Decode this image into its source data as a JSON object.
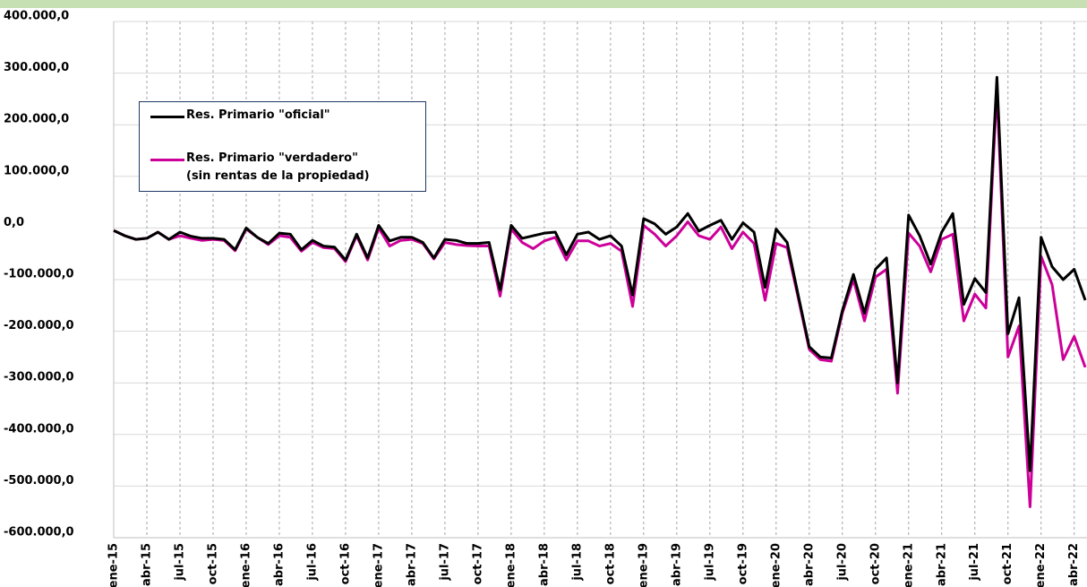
{
  "chart_data": {
    "type": "line",
    "categories": [
      "ene-15",
      null,
      null,
      "abr-15",
      null,
      null,
      "jul-15",
      null,
      null,
      "oct-15",
      null,
      null,
      "ene-16",
      null,
      null,
      "abr-16",
      null,
      null,
      "jul-16",
      null,
      null,
      "oct-16",
      null,
      null,
      "ene-17",
      null,
      null,
      "abr-17",
      null,
      null,
      "jul-17",
      null,
      null,
      "oct-17",
      null,
      null,
      "ene-18",
      null,
      null,
      "abr-18",
      null,
      null,
      "jul-18",
      null,
      null,
      "oct-18",
      null,
      null,
      "ene-19",
      null,
      null,
      "abr-19",
      null,
      null,
      "jul-19",
      null,
      null,
      "oct-19",
      null,
      null,
      "ene-20",
      null,
      null,
      "abr-20",
      null,
      null,
      "jul-20",
      null,
      null,
      "oct-20",
      null,
      null,
      "ene-21",
      null,
      null,
      "abr-21",
      null,
      null,
      "jul-21",
      null,
      null,
      "oct-21",
      null,
      null,
      "ene-22",
      null,
      null,
      "abr-22",
      null
    ],
    "series": [
      {
        "name": "Res. Primario \"oficial\"",
        "color": "#000000",
        "values": [
          -5000,
          -15000,
          -22000,
          -20000,
          -8000,
          -22000,
          -8000,
          -16000,
          -20000,
          -20000,
          -22000,
          -42000,
          0,
          -18000,
          -30000,
          -10000,
          -12000,
          -42000,
          -24000,
          -35000,
          -37000,
          -62000,
          -12000,
          -58000,
          5000,
          -25000,
          -18000,
          -18000,
          -28000,
          -58000,
          -22000,
          -24000,
          -30000,
          -30000,
          -28000,
          -120000,
          5000,
          -20000,
          -15000,
          -10000,
          -8000,
          -52000,
          -12000,
          -8000,
          -22000,
          -15000,
          -35000,
          -130000,
          18000,
          8000,
          -12000,
          2000,
          28000,
          -6000,
          5000,
          15000,
          -22000,
          10000,
          -8000,
          -115000,
          -2000,
          -28000,
          -130000,
          -230000,
          -250000,
          -252000,
          -160000,
          -90000,
          -165000,
          -80000,
          -58000,
          -300000,
          25000,
          -15000,
          -70000,
          -8000,
          28000,
          -148000,
          -98000,
          -125000,
          292000,
          -205000,
          -135000,
          -470000,
          -18000,
          -75000,
          -100000,
          -80000,
          -140000
        ]
      },
      {
        "name": "Res. Primario \"verdadero\"\n(sin rentas de la propiedad)",
        "color": "#cc0099",
        "values": [
          -5000,
          -15000,
          -22000,
          -20000,
          -8000,
          -22000,
          -15000,
          -20000,
          -24000,
          -22000,
          -24000,
          -44000,
          -2000,
          -18000,
          -32000,
          -15000,
          -18000,
          -45000,
          -28000,
          -38000,
          -40000,
          -65000,
          -15000,
          -62000,
          0,
          -35000,
          -24000,
          -22000,
          -30000,
          -60000,
          -28000,
          -32000,
          -34000,
          -35000,
          -35000,
          -132000,
          -2000,
          -28000,
          -40000,
          -25000,
          -18000,
          -62000,
          -25000,
          -25000,
          -35000,
          -30000,
          -45000,
          -152000,
          5000,
          -12000,
          -35000,
          -15000,
          12000,
          -15000,
          -22000,
          2000,
          -40000,
          -8000,
          -30000,
          -140000,
          -30000,
          -38000,
          -135000,
          -235000,
          -255000,
          -258000,
          -165000,
          -100000,
          -180000,
          -95000,
          -80000,
          -320000,
          -10000,
          -35000,
          -85000,
          -22000,
          -12000,
          -180000,
          -128000,
          -155000,
          270000,
          -250000,
          -190000,
          -540000,
          -55000,
          -110000,
          -255000,
          -210000,
          -270000
        ]
      }
    ],
    "ylim": [
      -600000,
      400000
    ],
    "yticks": [
      {
        "value": -600000,
        "label": "-600.000,0"
      },
      {
        "value": -500000,
        "label": "-500.000,0"
      },
      {
        "value": -400000,
        "label": "-400.000,0"
      },
      {
        "value": -300000,
        "label": "-300.000,0"
      },
      {
        "value": -200000,
        "label": "-200.000,0"
      },
      {
        "value": -100000,
        "label": "-100.000,0"
      },
      {
        "value": 0,
        "label": "0,0"
      },
      {
        "value": 100000,
        "label": "100.000,0"
      },
      {
        "value": 200000,
        "label": "200.000,0"
      },
      {
        "value": 300000,
        "label": "300.000,0"
      },
      {
        "value": 400000,
        "label": "400.000,0"
      }
    ],
    "grid": true
  }
}
